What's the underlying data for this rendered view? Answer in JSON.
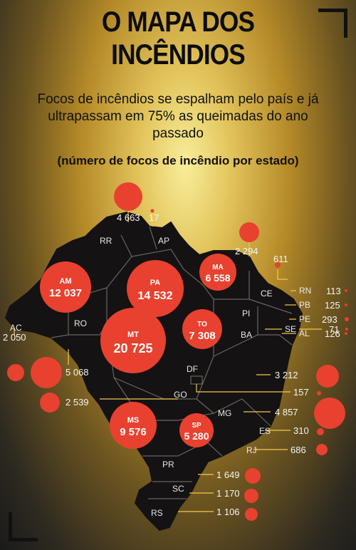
{
  "header": {
    "title_line1": "O MAPA DOS",
    "title_line2": "INCÊNDIOS",
    "subtitle": "Focos de incêndios se espalham pelo país e já ultrapassam em 75% as queimadas do ano passado",
    "note": "(número de focos de incêndio por estado)"
  },
  "colors": {
    "map": "#141212",
    "borders": "#6a6460",
    "bubble": "#e8412f",
    "leader": "#f2c94c",
    "text_light": "#f4f4f4"
  },
  "map_data": {
    "type": "bubble_map",
    "states": [
      {
        "code": "AM",
        "value": "12 037"
      },
      {
        "code": "PA",
        "value": "14 532"
      },
      {
        "code": "MA",
        "value": "6 558"
      },
      {
        "code": "TO",
        "value": "7 308"
      },
      {
        "code": "MT",
        "value": "20 725"
      },
      {
        "code": "MS",
        "value": "9 576"
      },
      {
        "code": "SP",
        "value": "5 280"
      },
      {
        "code": "RR",
        "value": "4 663"
      },
      {
        "code": "AP",
        "value": "17"
      },
      {
        "code": "PI",
        "value": "2 294"
      },
      {
        "code": "CE",
        "value": "611"
      },
      {
        "code": "RN",
        "value": "113"
      },
      {
        "code": "PB",
        "value": "125"
      },
      {
        "code": "PE",
        "value": "293"
      },
      {
        "code": "AL",
        "value": "126"
      },
      {
        "code": "SE",
        "value": "71"
      },
      {
        "code": "AC",
        "value": "2 050"
      },
      {
        "code": "RO",
        "value": "5 068"
      },
      {
        "code": "GO",
        "value": "2 539"
      },
      {
        "code": "BA",
        "value": "3 212"
      },
      {
        "code": "DF",
        "value": "157"
      },
      {
        "code": "MG",
        "value": "4 857"
      },
      {
        "code": "ES",
        "value": "310"
      },
      {
        "code": "RJ",
        "value": "686"
      },
      {
        "code": "PR",
        "value": "1 649"
      },
      {
        "code": "SC",
        "value": "1 170"
      },
      {
        "code": "RS",
        "value": "1 106"
      }
    ]
  }
}
